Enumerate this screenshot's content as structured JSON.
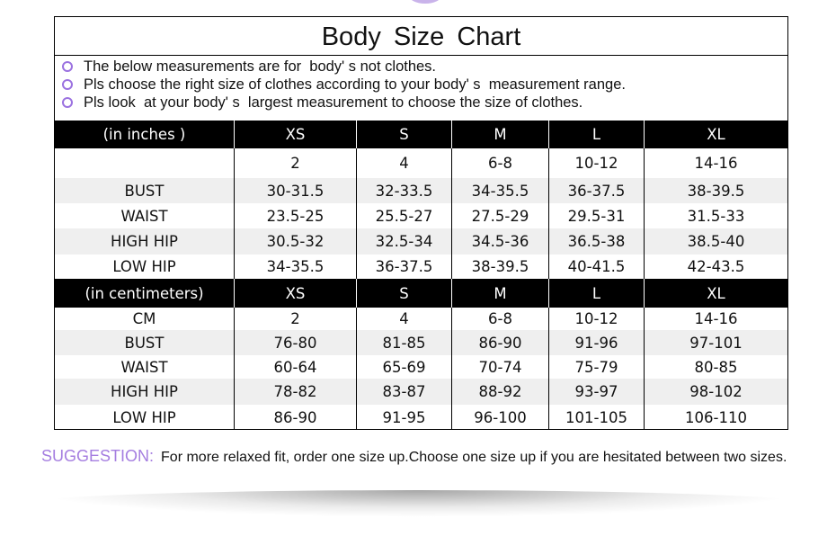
{
  "title": "Body  Size  Chart",
  "notes": [
    "The below measurements are for  body' s not clothes.",
    "Pls choose the right size of clothes according to your body' s  measurement range.",
    "Pls look  at your body' s  largest measurement to choose the size of clothes."
  ],
  "colors": {
    "accent": "#a57ee0",
    "stripe": "#efefef",
    "header": "#000000"
  },
  "inches": {
    "header": [
      "(in  inches )",
      "XS",
      "S",
      "M",
      "L",
      "XL"
    ],
    "rows": [
      [
        "",
        "2",
        "4",
        "6-8",
        "10-12",
        "14-16"
      ],
      [
        "BUST",
        "30-31.5",
        "32-33.5",
        "34-35.5",
        "36-37.5",
        "38-39.5"
      ],
      [
        "WAIST",
        "23.5-25",
        "25.5-27",
        "27.5-29",
        "29.5-31",
        "31.5-33"
      ],
      [
        "HIGH HIP",
        "30.5-32",
        "32.5-34",
        "34.5-36",
        "36.5-38",
        "38.5-40"
      ],
      [
        "LOW HIP",
        "34-35.5",
        "36-37.5",
        "38-39.5",
        "40-41.5",
        "42-43.5"
      ]
    ]
  },
  "centimeters": {
    "header": [
      "(in centimeters)",
      "XS",
      "S",
      "M",
      "L",
      "XL"
    ],
    "rows": [
      [
        "CM",
        "2",
        "4",
        "6-8",
        "10-12",
        "14-16"
      ],
      [
        "BUST",
        "76-80",
        "81-85",
        "86-90",
        "91-96",
        "97-101"
      ],
      [
        "WAIST",
        "60-64",
        "65-69",
        "70-74",
        "75-79",
        "80-85"
      ],
      [
        "HIGH HIP",
        "78-82",
        "83-87",
        "88-92",
        "93-97",
        "98-102"
      ],
      [
        "LOW HIP",
        "86-90",
        "91-95",
        "96-100",
        "101-105",
        "106-110"
      ]
    ]
  },
  "suggestion": {
    "label": "SUGGESTION:",
    "text": "For more relaxed fit, order one size up.Choose one size up if you are hesitated between two sizes."
  }
}
